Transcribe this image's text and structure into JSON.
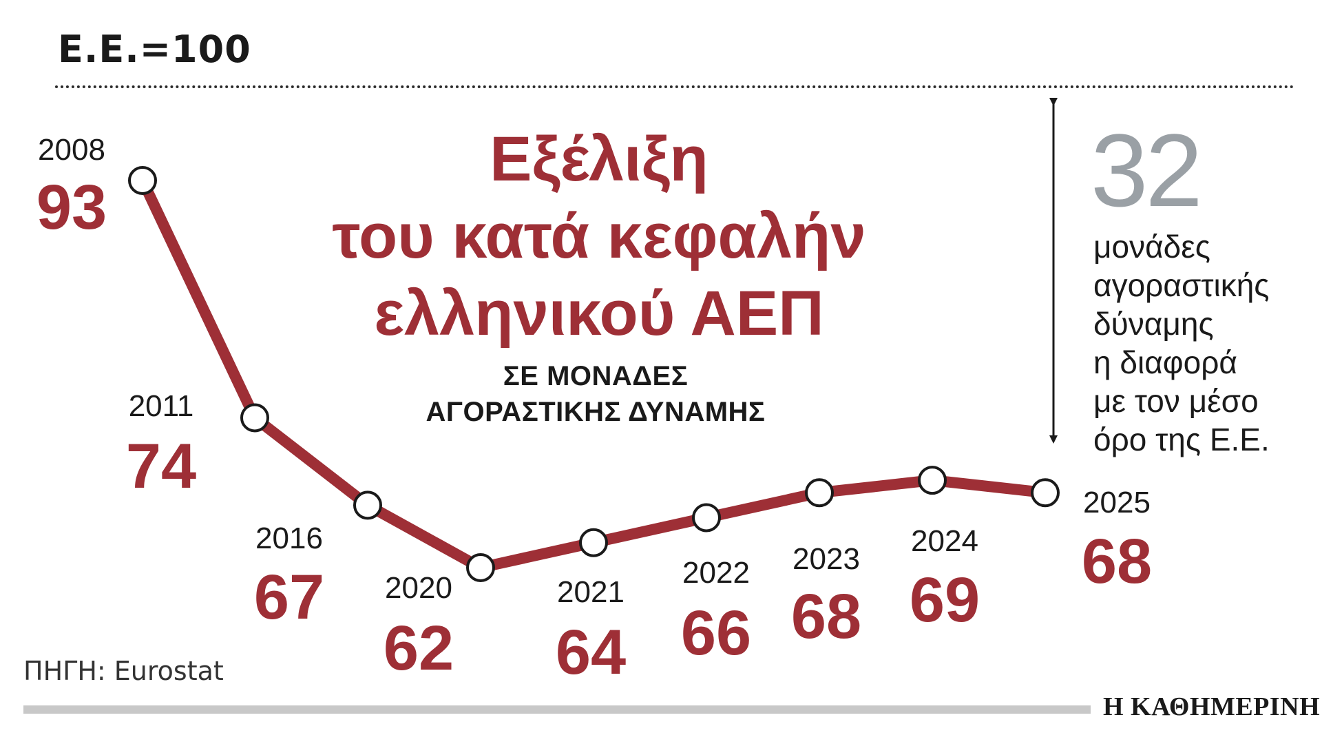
{
  "header": {
    "index_label": "Ε.Ε.=100"
  },
  "title": {
    "lines": [
      "Εξέλιξη",
      "του κατά κεφαλήν",
      "ελληνικού ΑΕΠ"
    ],
    "sub_lines": [
      "ΣΕ ΜΟΝΑΔΕΣ",
      "ΑΓΟΡΑΣΤΙΚΗΣ ΔΥΝΑΜΗΣ"
    ]
  },
  "side_note": {
    "number": "32",
    "lines": [
      "μονάδες",
      "αγοραστικής",
      "δύναμης",
      "η διαφορά",
      "με τον μέσο",
      "όρο της Ε.Ε."
    ]
  },
  "source": "ΠΗΓΗ: Eurostat",
  "brand": "Η ΚΑΘΗΜΕΡΙΝΗ",
  "colors": {
    "line": "#9e2f36",
    "marker_fill": "#ffffff",
    "marker_stroke": "#1a1a1a",
    "number_gray": "#9aa0a5"
  },
  "chart_data": {
    "type": "line",
    "categories": [
      "2008",
      "2011",
      "2016",
      "2020",
      "2021",
      "2022",
      "2023",
      "2024",
      "2025"
    ],
    "series": [
      {
        "values": [
          93,
          74,
          67,
          62,
          64,
          66,
          68,
          69,
          68
        ]
      }
    ],
    "title": "Εξέλιξη του κατά κεφαλήν ελληνικού ΑΕΠ",
    "subtitle": "ΣΕ ΜΟΝΑΔΕΣ ΑΓΟΡΑΣΤΙΚΗΣ ΔΥΝΑΜΗΣ",
    "reference": "Ε.Ε.=100",
    "grid": false,
    "legend": "none"
  }
}
